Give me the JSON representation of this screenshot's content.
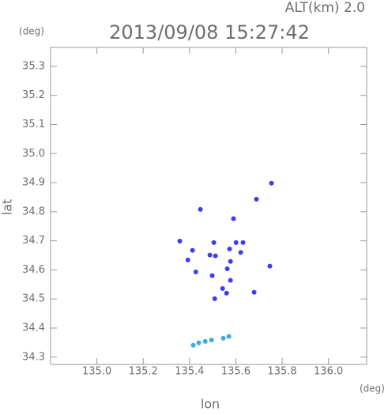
{
  "chart_data": {
    "type": "scatter",
    "title": "2013/09/08 15:27:42",
    "subtitle": "ALT(km) 2.0",
    "x_label": "lon",
    "y_label": "lat",
    "x_unit": "(deg)",
    "y_unit": "(deg)",
    "xlim": [
      134.8,
      136.165
    ],
    "ylim": [
      34.275,
      35.365
    ],
    "xticks": [
      {
        "value": 135.0,
        "label": "135.0"
      },
      135.2,
      135.4,
      135.6,
      135.8,
      {
        "value": 136.0,
        "label": "136.0"
      }
    ],
    "yticks": [
      35.3,
      35.2,
      35.1,
      {
        "value": 35.0,
        "label": "35.0"
      },
      34.9,
      34.8,
      34.7,
      34.6,
      34.5,
      34.4,
      34.3
    ],
    "series": [
      {
        "color": "#3c3cf0",
        "x": [
          135.754,
          135.689,
          135.59,
          135.447,
          135.358,
          135.601,
          135.505,
          135.631,
          135.413,
          135.393,
          135.488,
          135.512,
          135.573,
          135.577,
          135.621,
          135.747,
          135.498,
          135.563,
          135.577,
          135.543,
          135.56,
          135.509,
          135.679,
          135.427
        ],
        "y": [
          34.898,
          34.843,
          34.776,
          34.808,
          34.699,
          34.694,
          34.694,
          34.694,
          34.667,
          34.634,
          34.651,
          34.648,
          34.672,
          34.629,
          34.66,
          34.613,
          34.58,
          34.604,
          34.564,
          34.536,
          34.52,
          34.501,
          34.523,
          34.593
        ]
      },
      {
        "color": "#40a8e8",
        "x": [
          135.416,
          135.44,
          135.468,
          135.495,
          135.546,
          135.57
        ],
        "y": [
          34.341,
          34.349,
          34.354,
          34.359,
          34.365,
          34.371
        ]
      }
    ]
  }
}
